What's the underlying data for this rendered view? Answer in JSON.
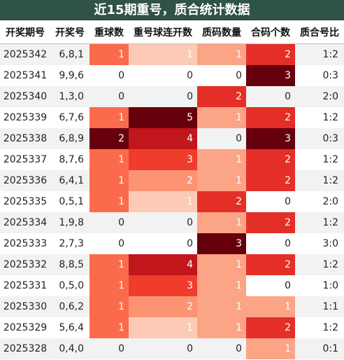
{
  "title": "近15期重号，质合统计数据",
  "headers": [
    "开奖期号",
    "开奖号",
    "重球数",
    "重号球连开数",
    "质码数量",
    "合码个数",
    "质合号比"
  ],
  "rows": [
    {
      "issue": "2025342",
      "numbers": "6,8,1",
      "repeat": 1,
      "streak": 1,
      "prime": 1,
      "composite": 2,
      "ratio": "1:2"
    },
    {
      "issue": "2025341",
      "numbers": "9,9,6",
      "repeat": 0,
      "streak": 0,
      "prime": 0,
      "composite": 3,
      "ratio": "0:3"
    },
    {
      "issue": "2025340",
      "numbers": "1,3,0",
      "repeat": 0,
      "streak": 0,
      "prime": 2,
      "composite": 0,
      "ratio": "2:0"
    },
    {
      "issue": "2025339",
      "numbers": "6,7,6",
      "repeat": 1,
      "streak": 5,
      "prime": 1,
      "composite": 2,
      "ratio": "1:2"
    },
    {
      "issue": "2025338",
      "numbers": "6,8,9",
      "repeat": 2,
      "streak": 4,
      "prime": 0,
      "composite": 3,
      "ratio": "0:3"
    },
    {
      "issue": "2025337",
      "numbers": "8,7,6",
      "repeat": 1,
      "streak": 3,
      "prime": 1,
      "composite": 2,
      "ratio": "1:2"
    },
    {
      "issue": "2025336",
      "numbers": "6,4,1",
      "repeat": 1,
      "streak": 2,
      "prime": 1,
      "composite": 2,
      "ratio": "1:2"
    },
    {
      "issue": "2025335",
      "numbers": "0,5,1",
      "repeat": 1,
      "streak": 1,
      "prime": 2,
      "composite": 0,
      "ratio": "2:0"
    },
    {
      "issue": "2025334",
      "numbers": "1,9,8",
      "repeat": 0,
      "streak": 0,
      "prime": 1,
      "composite": 2,
      "ratio": "1:2"
    },
    {
      "issue": "2025333",
      "numbers": "2,7,3",
      "repeat": 0,
      "streak": 0,
      "prime": 3,
      "composite": 0,
      "ratio": "3:0"
    },
    {
      "issue": "2025332",
      "numbers": "8,8,5",
      "repeat": 1,
      "streak": 4,
      "prime": 1,
      "composite": 2,
      "ratio": "1:2"
    },
    {
      "issue": "2025331",
      "numbers": "0,5,0",
      "repeat": 1,
      "streak": 3,
      "prime": 1,
      "composite": 0,
      "ratio": "1:0"
    },
    {
      "issue": "2025330",
      "numbers": "0,6,2",
      "repeat": 1,
      "streak": 2,
      "prime": 1,
      "composite": 1,
      "ratio": "1:1"
    },
    {
      "issue": "2025329",
      "numbers": "5,6,4",
      "repeat": 1,
      "streak": 1,
      "prime": 1,
      "composite": 2,
      "ratio": "1:2"
    },
    {
      "issue": "2025328",
      "numbers": "0,4,0",
      "repeat": 0,
      "streak": 0,
      "prime": 0,
      "composite": 1,
      "ratio": "0:1"
    }
  ],
  "colors": {
    "title_bg": "#2f5249",
    "repeat": {
      "0": "",
      "1": "#fb6b4b",
      "2": "#67000d"
    },
    "streak": {
      "0": "",
      "1": "#fdcab5",
      "2": "#fc9474",
      "3": "#ef3c2c",
      "4": "#c0161c",
      "5": "#67000d"
    },
    "prime": {
      "0": "",
      "1": "#fca486",
      "2": "#e32f27",
      "3": "#67000d"
    },
    "composite": {
      "0": "",
      "1": "#fca486",
      "2": "#e32f27",
      "3": "#67000d"
    }
  }
}
